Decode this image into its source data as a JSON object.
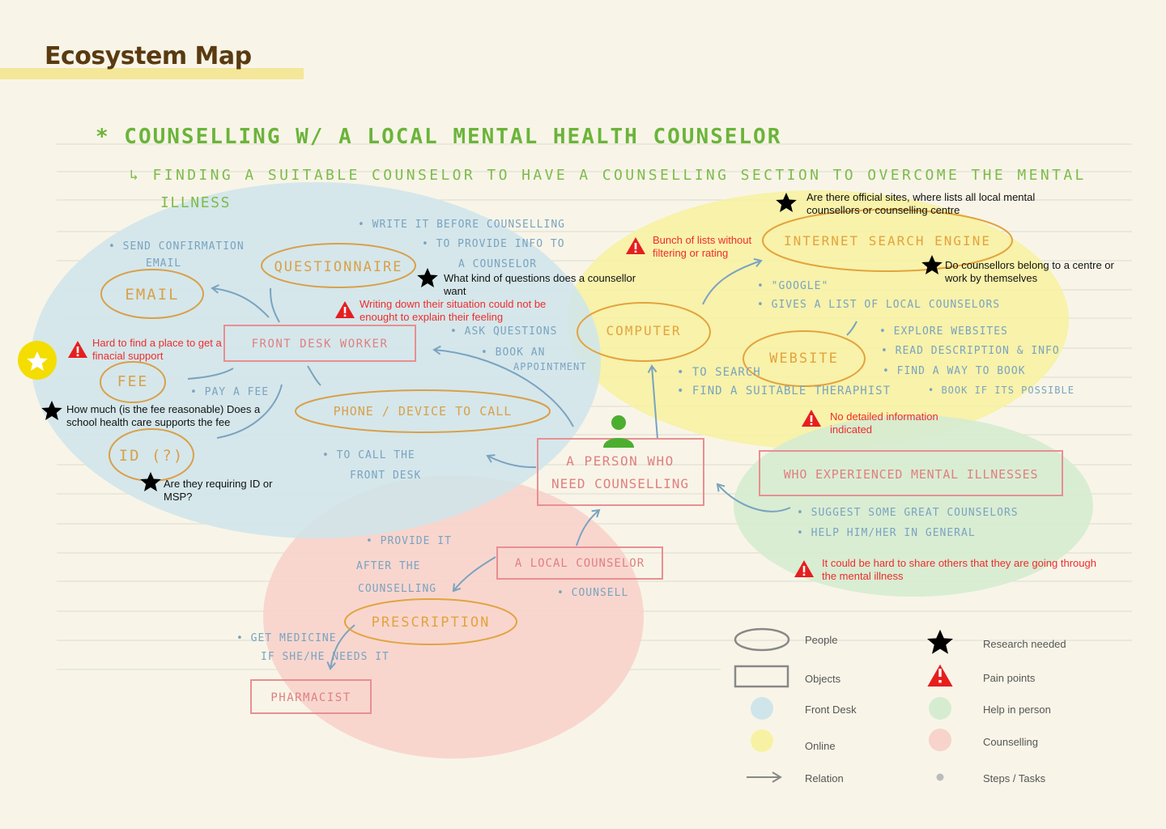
{
  "title": "Ecosystem Map",
  "heading": "* COUNSELLING W/ A LOCAL MENTAL HEALTH COUNSELOR",
  "subheading_line1": "↳ FINDING A SUITABLE COUNSELOR TO HAVE A COUNSELLING SECTION TO OVERCOME THE MENTAL",
  "subheading_line2": "ILLNESS",
  "colors": {
    "front_desk": "#cfe5ea",
    "online": "#f7f2a3",
    "help_in_person": "#d6ecd0",
    "counselling": "#f7d3cb",
    "people_orange": "#d9a04a",
    "object_red": "#e07f80",
    "blue_text": "#7aa3c0",
    "green_text": "#7dbb4a",
    "pain_red": "#ee2c2c",
    "title_brown": "#5a3a10"
  },
  "people": {
    "questionnaire": "QUESTIONNAIRE",
    "email": "EMAIL",
    "fee": "FEE",
    "id": "ID (?)",
    "phone": "PHONE / DEVICE TO CALL",
    "computer": "COMPUTER",
    "internet": "INTERNET SEARCH ENGINE",
    "website": "WEBSITE",
    "prescription": "PRESCRIPTION"
  },
  "objects": {
    "front_desk": "FRONT DESK WORKER",
    "person_line1": "A PERSON WHO",
    "person_line2": "NEED COUNSELLING",
    "experienced": "WHO EXPERIENCED MENTAL ILLNESSES",
    "local_counselor": "A LOCAL COUNSELOR",
    "pharmacist": "PHARMACIST"
  },
  "steps": {
    "send_conf_1": "• SEND CONFIRMATION",
    "send_conf_2": "EMAIL",
    "write_1": "• WRITE IT BEFORE COUNSELLING",
    "write_2": "• TO PROVIDE INFO TO",
    "write_3": "A COUNSELOR",
    "ask": "• ASK QUESTIONS",
    "book_1": "• BOOK AN",
    "book_2": "APPOINTMENT",
    "pay": "• PAY A FEE",
    "call_1": "• TO CALL THE",
    "call_2": "FRONT DESK",
    "google": "• \"GOOGLE\"",
    "gives_list": "• GIVES A LIST OF LOCAL COUNSELORS",
    "to_search": "• TO SEARCH",
    "find_therapist": "• FIND A SUITABLE THERAPHIST",
    "explore": "• EXPLORE WEBSITES",
    "read": "• READ DESCRIPTION & INFO",
    "find_way": "• FIND A WAY TO BOOK",
    "book_possible": "• BOOK IF ITS POSSIBLE",
    "suggest": "• SUGGEST SOME GREAT COUNSELORS",
    "help": "• HELP HIM/HER IN GENERAL",
    "provide_1": "• PROVIDE IT",
    "provide_2": "AFTER THE",
    "provide_3": "COUNSELLING",
    "counsell": "• COUNSELL",
    "medicine_1": "• GET MEDICINE",
    "medicine_2": "IF SHE/HE NEEDS IT"
  },
  "research_notes": {
    "questions": "What kind of questions does a counsellor want",
    "official_sites": "Are there official sites, where lists all local mental counsellors or counselling centre",
    "centre": "Do counsellors belong to a centre or work by themselves",
    "fee": "How much (is the fee reasonable) Does a school health care supports the fee",
    "id": "Are they requiring ID or MSP?"
  },
  "pain_notes": {
    "writing": "Writing down their situation could not be enought to explain their feeling",
    "financial": "Hard to find a place to get a finacial support",
    "lists": "Bunch of lists without filtering or rating",
    "detailed": "No detailed information indicated",
    "share": "It could be hard to share others that they are going through the mental illness"
  },
  "legend": {
    "people": "People",
    "objects": "Objects",
    "front_desk": "Front Desk",
    "online": "Online",
    "relation": "Relation",
    "research": "Research needed",
    "pain": "Pain points",
    "help": "Help in person",
    "counselling": "Counselling",
    "steps": "Steps / Tasks"
  }
}
